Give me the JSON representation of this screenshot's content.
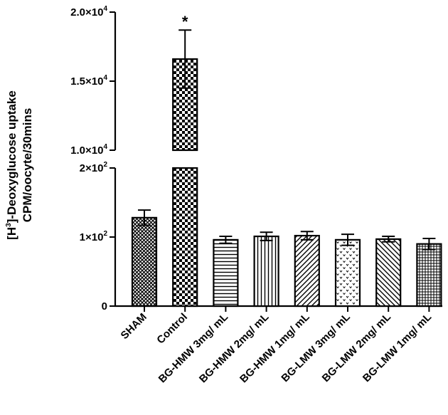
{
  "chart_data": {
    "type": "bar",
    "ylabel_line1_pre": "[H",
    "ylabel_line1_sup": "3",
    "ylabel_line1_post": "]-Deoxyglucose uptake",
    "ylabel_line2": "CPM/oocyte/30mins",
    "y_axis_break": true,
    "lower_ylim": [
      0,
      200
    ],
    "upper_ylim": [
      10000,
      20000
    ],
    "lower_ticks": [
      {
        "value": 0,
        "base": "0",
        "exp": ""
      },
      {
        "value": 100,
        "base": "1×10",
        "exp": "2"
      },
      {
        "value": 200,
        "base": "2×10",
        "exp": "2"
      }
    ],
    "upper_ticks": [
      {
        "value": 10000,
        "base": "1.0×10",
        "exp": "4"
      },
      {
        "value": 15000,
        "base": "1.5×10",
        "exp": "4"
      },
      {
        "value": 20000,
        "base": "2.0×10",
        "exp": "4"
      }
    ],
    "categories": [
      "SHAM",
      "Control",
      "BG-HMW 3mg/ mL",
      "BG-HMW 2mg/ mL",
      "BG-HMW 1mg/ mL",
      "BG-LMW 3mg/ mL",
      "BG-LMW 2mg/ mL",
      "BG-LMW 1mg/ mL"
    ],
    "values": [
      128,
      16600,
      96,
      101,
      102,
      96,
      97,
      90
    ],
    "errors": [
      11,
      2100,
      5,
      6,
      6,
      8,
      4,
      8
    ],
    "patterns": [
      "crosshatch",
      "checker",
      "hlines",
      "vlines",
      "diag-right",
      "dots",
      "diag-left",
      "grid"
    ],
    "annotations": [
      {
        "category": "Control",
        "text": "*"
      }
    ],
    "grid": false,
    "legend": "none"
  }
}
